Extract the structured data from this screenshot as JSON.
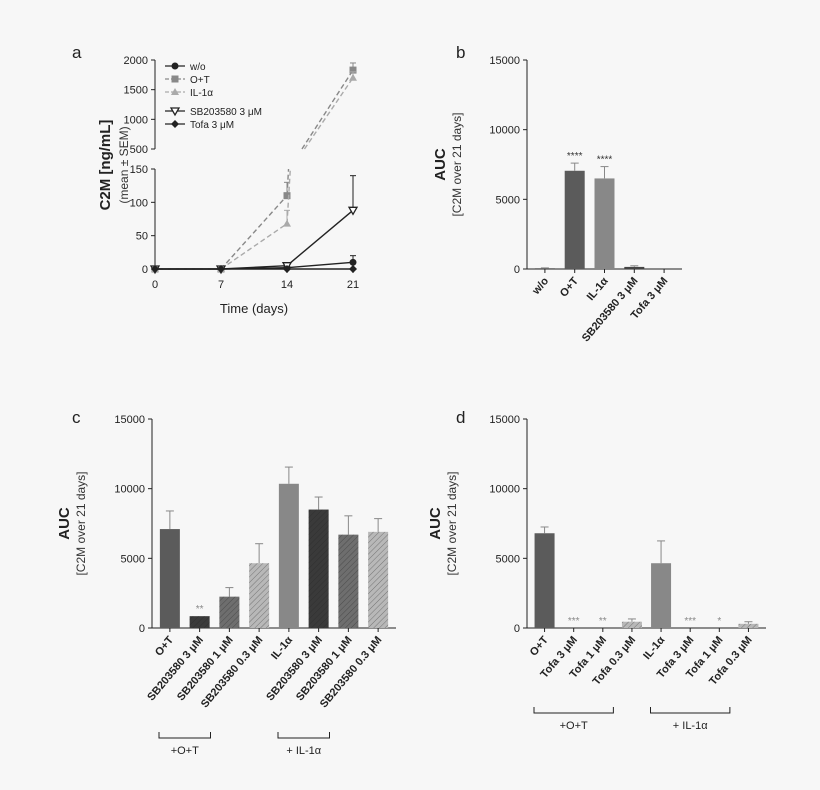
{
  "chart_data": [
    {
      "id": "a",
      "type": "line",
      "panel_label": "a",
      "ylabel": "C2M [ng/mL]",
      "ylabel_sub": "(mean ± SEM)",
      "xlabel": "Time (days)",
      "x": [
        0,
        7,
        14,
        21
      ],
      "x_ticks": [
        "0",
        "7",
        "14",
        "21"
      ],
      "y_lower_ticks": [
        "0",
        "50",
        "100",
        "150"
      ],
      "y_upper_ticks": [
        "500",
        "1000",
        "1500",
        "2000"
      ],
      "ylim_lower": [
        0,
        150
      ],
      "ylim_upper": [
        500,
        2000
      ],
      "series": [
        {
          "name": "w/o",
          "marker": "circle",
          "color": "#222222",
          "dashed": false,
          "values": [
            0,
            0,
            2,
            10
          ],
          "sem": [
            0,
            0,
            1,
            10
          ]
        },
        {
          "name": "O+T",
          "marker": "square",
          "color": "#888888",
          "dashed": true,
          "values": [
            0,
            0,
            110,
            1830
          ],
          "sem": [
            0,
            0,
            20,
            120
          ]
        },
        {
          "name": "IL-1α",
          "marker": "triangle",
          "color": "#aaaaaa",
          "dashed": true,
          "values": [
            0,
            0,
            68,
            1700
          ],
          "sem": [
            0,
            0,
            20,
            100
          ]
        },
        {
          "name": "SB203580 3 μM",
          "marker": "triangle-down",
          "color": "#222222",
          "dashed": false,
          "values": [
            0,
            0,
            5,
            88
          ],
          "sem": [
            0,
            0,
            2,
            52
          ]
        },
        {
          "name": "Tofa 3 μM",
          "marker": "diamond",
          "color": "#222222",
          "dashed": false,
          "values": [
            0,
            0,
            0,
            0
          ],
          "sem": [
            0,
            0,
            0,
            0
          ]
        }
      ]
    },
    {
      "id": "b",
      "type": "bar",
      "panel_label": "b",
      "ylabel": "AUC",
      "ylabel_sub": "[C2M over 21 days]",
      "ylim": [
        0,
        15000
      ],
      "y_ticks": [
        "0",
        "5000",
        "10000",
        "15000"
      ],
      "categories": [
        "w/o",
        "O+T",
        "IL-1α",
        "SB203580 3 μM",
        "Tofa 3 μM"
      ],
      "values": [
        50,
        7050,
        6500,
        150,
        0
      ],
      "errors": [
        30,
        550,
        850,
        80,
        0
      ],
      "significance": [
        "",
        "****",
        "****",
        "",
        ""
      ],
      "colors": [
        "#444444",
        "#5b5b5b",
        "#888888",
        "#444444",
        "#444444"
      ],
      "hatched": [
        false,
        false,
        false,
        false,
        false
      ]
    },
    {
      "id": "c",
      "type": "bar",
      "panel_label": "c",
      "ylabel": "AUC",
      "ylabel_sub": "[C2M over 21 days]",
      "ylim": [
        0,
        15000
      ],
      "y_ticks": [
        "0",
        "5000",
        "10000",
        "15000"
      ],
      "categories": [
        "O+T",
        "SB203580 3 μM",
        "SB203580 1 μM",
        "SB203580 0.3 μM",
        "IL-1α",
        "SB203580 3 μM",
        "SB203580 1 μM",
        "SB203580 0.3 μM"
      ],
      "values": [
        7100,
        850,
        2250,
        4650,
        10350,
        8500,
        6700,
        6900
      ],
      "errors": [
        1300,
        0,
        650,
        1400,
        1200,
        900,
        1350,
        950
      ],
      "significance": [
        "",
        "**",
        "",
        "",
        "",
        "",
        "",
        ""
      ],
      "colors": [
        "#5b5b5b",
        "#3a3a3a",
        "#6e6e6e",
        "#b8b8b8",
        "#888888",
        "#3a3a3a",
        "#6e6e6e",
        "#b8b8b8"
      ],
      "hatched": [
        false,
        true,
        true,
        true,
        false,
        true,
        true,
        true
      ],
      "groups": [
        {
          "label": "+O+T",
          "from": 0,
          "to": 1
        },
        {
          "label": "+ IL-1α",
          "from": 4,
          "to": 5
        }
      ]
    },
    {
      "id": "d",
      "type": "bar",
      "panel_label": "d",
      "ylabel": "AUC",
      "ylabel_sub": "[C2M over 21 days]",
      "ylim": [
        0,
        15000
      ],
      "y_ticks": [
        "0",
        "5000",
        "10000",
        "15000"
      ],
      "categories": [
        "O+T",
        "Tofa 3 μM",
        "Tofa 1 μM",
        "Tofa 0.3 μM",
        "IL-1α",
        "Tofa 3 μM",
        "Tofa 1 μM",
        "Tofa 0.3 μM"
      ],
      "values": [
        6800,
        0,
        0,
        450,
        4650,
        0,
        0,
        300
      ],
      "errors": [
        450,
        0,
        0,
        200,
        1600,
        0,
        0,
        150
      ],
      "significance": [
        "",
        "***",
        "**",
        "",
        "",
        "***",
        "*",
        ""
      ],
      "colors": [
        "#5b5b5b",
        "#999999",
        "#999999",
        "#b8b8b8",
        "#888888",
        "#999999",
        "#999999",
        "#b8b8b8"
      ],
      "hatched": [
        false,
        false,
        false,
        true,
        false,
        false,
        false,
        true
      ],
      "groups": [
        {
          "label": "+O+T",
          "from": 0,
          "to": 2
        },
        {
          "label": "+ IL-1α",
          "from": 4,
          "to": 6
        }
      ]
    }
  ]
}
